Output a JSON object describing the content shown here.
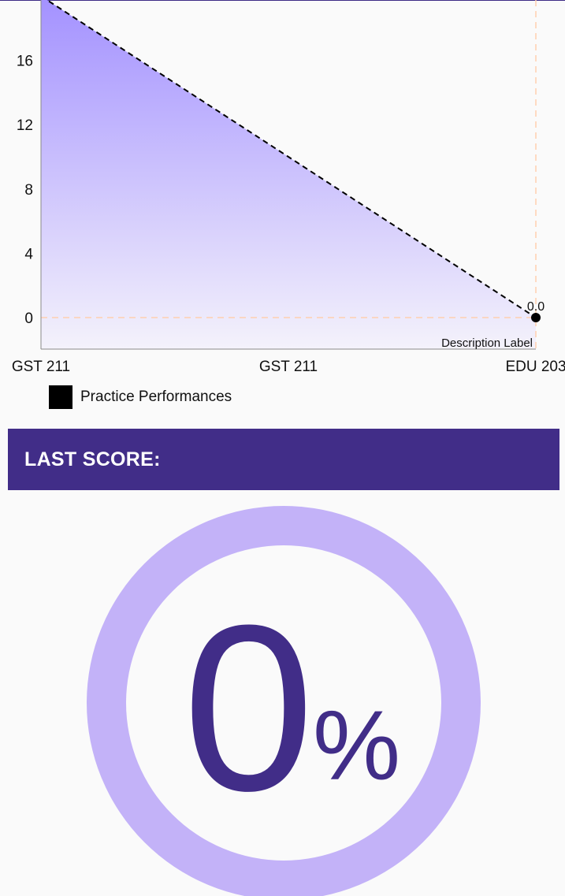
{
  "chart_data": {
    "type": "area",
    "categories": [
      "GST 211",
      "GST 211",
      "EDU 203"
    ],
    "values": [
      20,
      10,
      0
    ],
    "y_ticks": [
      "0",
      "4",
      "8",
      "12",
      "16"
    ],
    "ylim": [
      -2,
      20
    ],
    "last_value_label": "0.0",
    "description": "Description Label",
    "legend": "Practice Performances",
    "grid": false,
    "colors": {
      "area_top": "#a391ff",
      "area_bottom": "#f4f2fb",
      "line": "#000000",
      "limit_line": "#ffd0b0",
      "axis": "#8a8a8a"
    }
  },
  "score": {
    "title": "LAST SCORE:",
    "value": "0",
    "unit": "%",
    "colors": {
      "header_bg": "#412d88",
      "ring": "#c3b2f8",
      "value": "#412d88"
    }
  }
}
